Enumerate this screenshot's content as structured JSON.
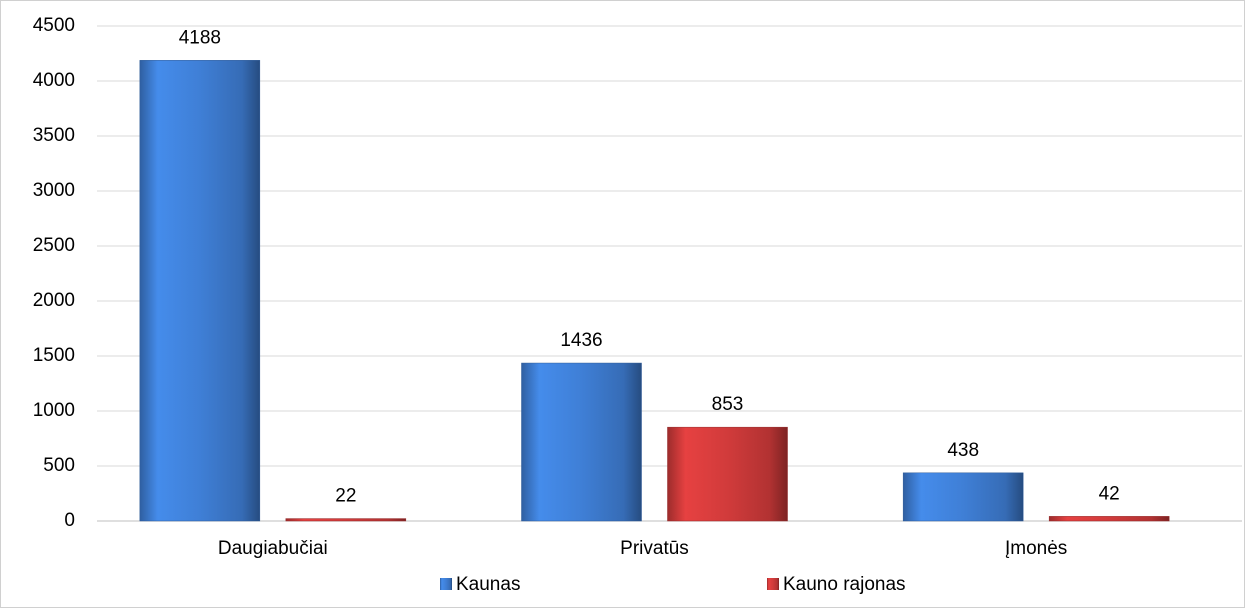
{
  "chart_data": {
    "type": "bar",
    "categories": [
      "Daugiabučiai",
      "Privatūs",
      "Įmonės"
    ],
    "series": [
      {
        "name": "Kaunas",
        "color": "#3f7fd6",
        "values": [
          4188,
          1436,
          438
        ]
      },
      {
        "name": "Kauno rajonas",
        "color": "#d13b3b",
        "values": [
          22,
          853,
          42
        ]
      }
    ],
    "ylim": [
      0,
      4500
    ],
    "yticks": [
      0,
      500,
      1000,
      1500,
      2000,
      2500,
      3000,
      3500,
      4000,
      4500
    ],
    "grid": true,
    "legend": "bottom"
  }
}
